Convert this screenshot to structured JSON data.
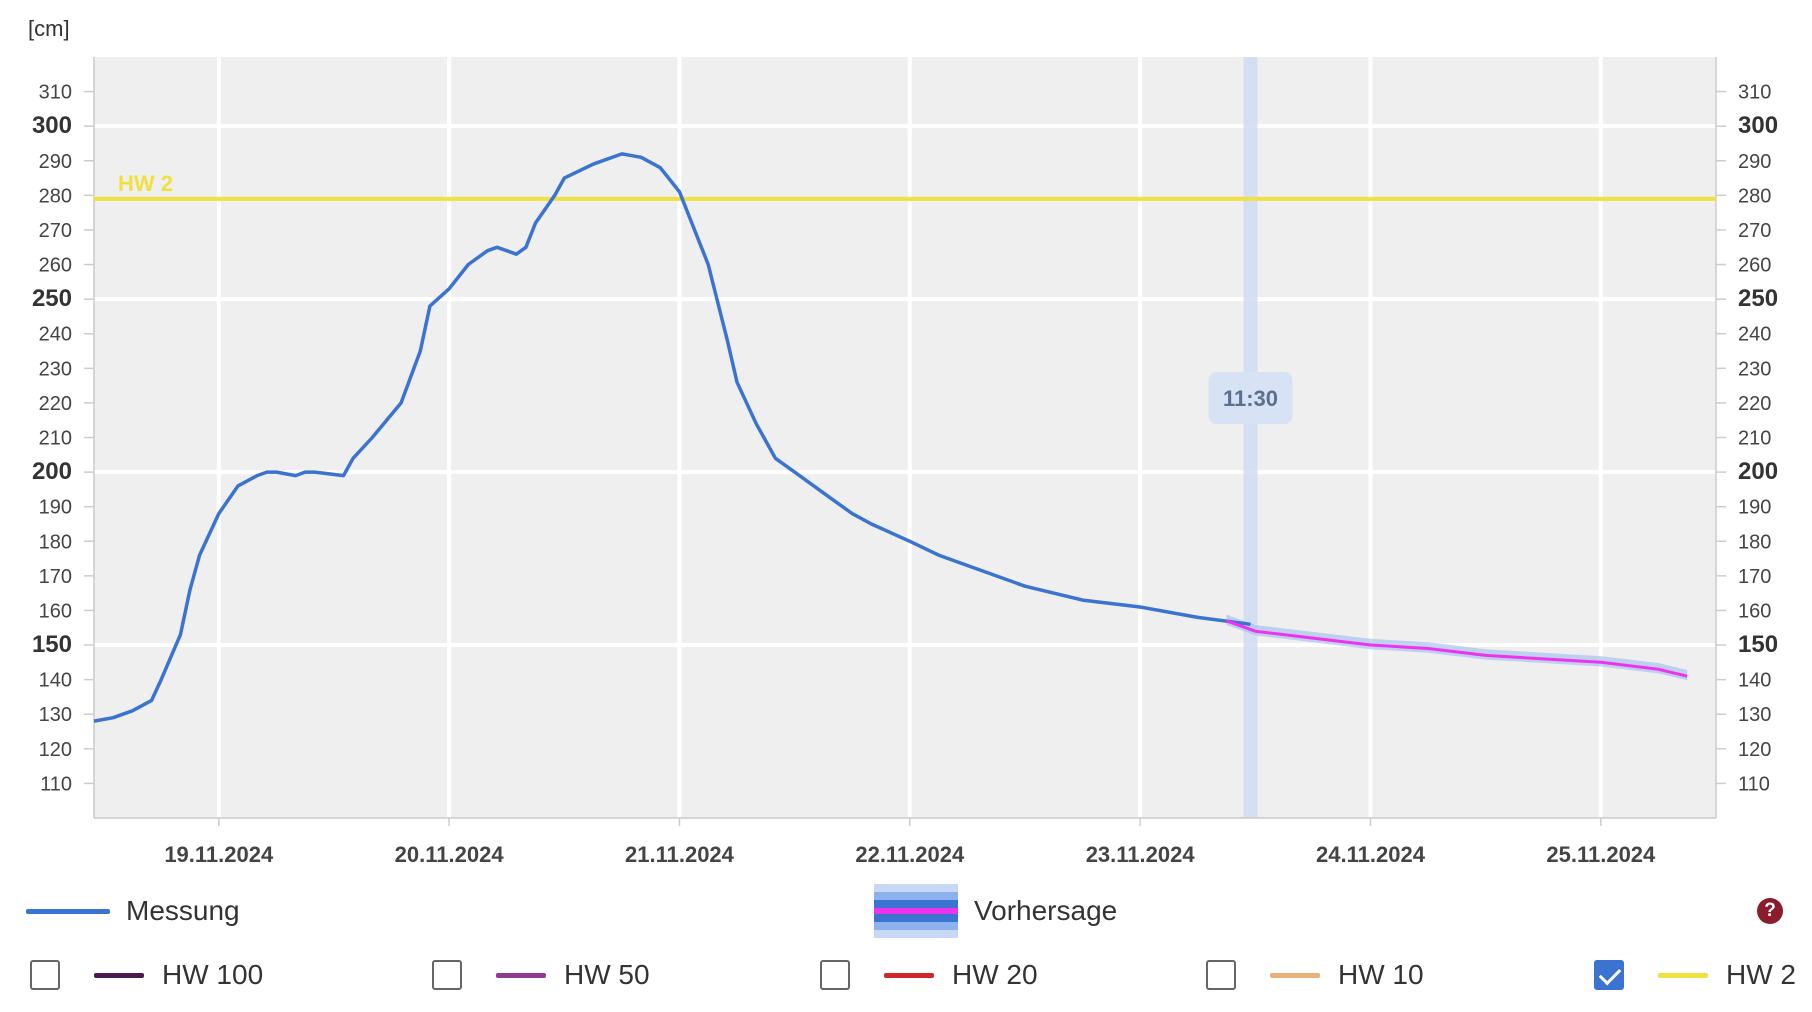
{
  "unit_label": "[cm]",
  "tooltip_time": "11:30",
  "legend": {
    "measurement": "Messung",
    "forecast": "Vorhersage",
    "help_icon": "question-circle-icon"
  },
  "thresholds": [
    {
      "label": "HW 100",
      "color": "#4b1a4f",
      "checked": false
    },
    {
      "label": "HW 50",
      "color": "#8e3a92",
      "checked": false
    },
    {
      "label": "HW 20",
      "color": "#d02828",
      "checked": false
    },
    {
      "label": "HW 10",
      "color": "#eab07a",
      "checked": false
    },
    {
      "label": "HW 2",
      "color": "#f0e040",
      "checked": true
    }
  ],
  "colors": {
    "measurement": "#3a73d0",
    "forecast": "#ee33ee",
    "forecast_band": "#a9c3f0",
    "hw2": "#f0e040",
    "plot_bg": "#efefef",
    "now_band": "#cfdcf3"
  },
  "chart_data": {
    "type": "line",
    "y_unit": "[cm]",
    "ylim": [
      100,
      320
    ],
    "y_ticks": [
      110,
      120,
      130,
      140,
      150,
      160,
      170,
      180,
      190,
      200,
      210,
      220,
      230,
      240,
      250,
      260,
      270,
      280,
      290,
      300,
      310
    ],
    "y_major_ticks": [
      150,
      200,
      250,
      300
    ],
    "xlim": [
      "2024-11-18T11:00",
      "2024-11-25T12:00"
    ],
    "x_ticks": [
      "2024-11-19T00:00",
      "2024-11-20T00:00",
      "2024-11-21T00:00",
      "2024-11-22T00:00",
      "2024-11-23T00:00",
      "2024-11-24T00:00",
      "2024-11-25T00:00"
    ],
    "x_tick_labels": [
      "19.11.2024",
      "20.11.2024",
      "21.11.2024",
      "22.11.2024",
      "23.11.2024",
      "24.11.2024",
      "25.11.2024"
    ],
    "now": "2024-11-23T11:30",
    "threshold_lines": [
      {
        "name": "HW 2",
        "value": 279
      }
    ],
    "grid": true,
    "legend_position": "bottom",
    "series": [
      {
        "name": "Messung",
        "x": [
          "2024-11-18T11:00",
          "2024-11-18T13:00",
          "2024-11-18T14:00",
          "2024-11-18T15:00",
          "2024-11-18T17:00",
          "2024-11-18T18:00",
          "2024-11-18T20:00",
          "2024-11-18T21:00",
          "2024-11-18T22:00",
          "2024-11-19T00:00",
          "2024-11-19T02:00",
          "2024-11-19T04:00",
          "2024-11-19T05:00",
          "2024-11-19T06:00",
          "2024-11-19T08:00",
          "2024-11-19T09:00",
          "2024-11-19T10:00",
          "2024-11-19T13:00",
          "2024-11-19T14:00",
          "2024-11-19T16:00",
          "2024-11-19T19:00",
          "2024-11-19T21:00",
          "2024-11-19T22:00",
          "2024-11-20T00:00",
          "2024-11-20T02:00",
          "2024-11-20T04:00",
          "2024-11-20T05:00",
          "2024-11-20T06:00",
          "2024-11-20T07:00",
          "2024-11-20T08:00",
          "2024-11-20T09:00",
          "2024-11-20T10:00",
          "2024-11-20T11:00",
          "2024-11-20T12:00",
          "2024-11-20T15:00",
          "2024-11-20T18:00",
          "2024-11-20T20:00",
          "2024-11-20T22:00",
          "2024-11-21T00:00",
          "2024-11-21T03:00",
          "2024-11-21T04:00",
          "2024-11-21T05:00",
          "2024-11-21T06:00",
          "2024-11-21T08:00",
          "2024-11-21T10:00",
          "2024-11-21T12:00",
          "2024-11-21T14:00",
          "2024-11-21T16:00",
          "2024-11-21T18:00",
          "2024-11-21T20:00",
          "2024-11-22T00:00",
          "2024-11-22T03:00",
          "2024-11-22T06:00",
          "2024-11-22T12:00",
          "2024-11-22T18:00",
          "2024-11-23T00:00",
          "2024-11-23T06:00",
          "2024-11-23T11:30"
        ],
        "values": [
          128,
          129,
          130,
          131,
          134,
          140,
          153,
          166,
          176,
          188,
          196,
          199,
          200,
          200,
          199,
          200,
          200,
          199,
          204,
          210,
          220,
          235,
          248,
          253,
          260,
          264,
          265,
          264,
          263,
          265,
          272,
          276,
          280,
          285,
          289,
          292,
          291,
          288,
          281,
          260,
          249,
          238,
          226,
          214,
          204,
          200,
          196,
          192,
          188,
          185,
          180,
          176,
          173,
          167,
          163,
          161,
          158,
          156
        ]
      },
      {
        "name": "Vorhersage",
        "x": [
          "2024-11-23T09:00",
          "2024-11-23T12:00",
          "2024-11-23T18:00",
          "2024-11-24T00:00",
          "2024-11-24T06:00",
          "2024-11-24T12:00",
          "2024-11-24T18:00",
          "2024-11-25T00:00",
          "2024-11-25T06:00",
          "2024-11-25T09:00"
        ],
        "values": [
          157,
          154,
          152,
          150,
          149,
          147,
          146,
          145,
          143,
          141
        ]
      }
    ]
  }
}
